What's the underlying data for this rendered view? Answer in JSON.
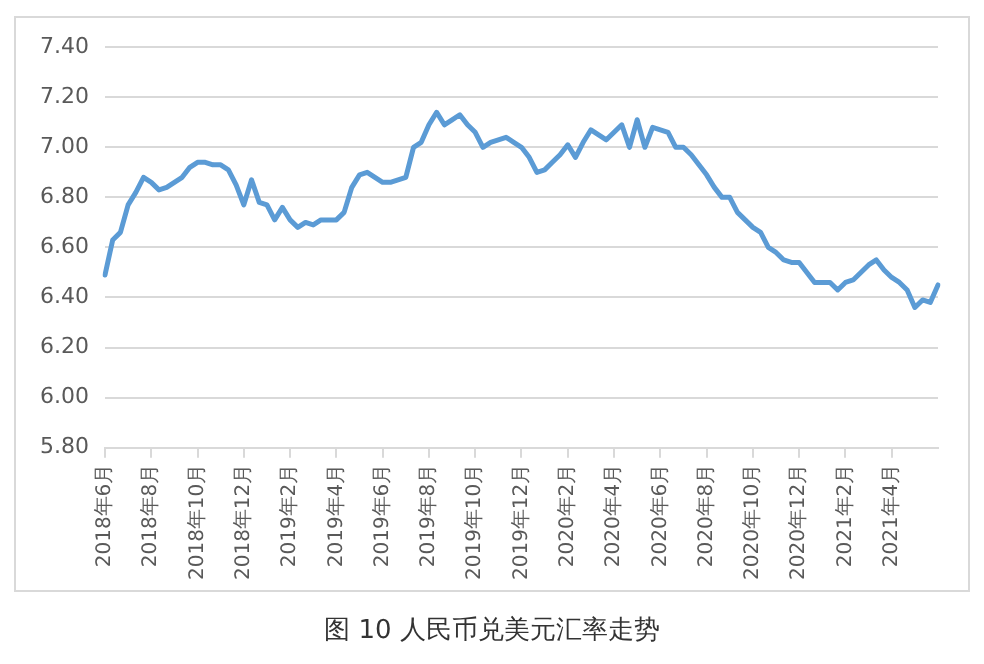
{
  "chart_data": {
    "type": "line",
    "title": "图 10 人民币兑美元汇率走势",
    "categories": [
      "2018年6月",
      null,
      null,
      null,
      null,
      null,
      "2018年8月",
      null,
      null,
      null,
      null,
      null,
      "2018年10月",
      null,
      null,
      null,
      null,
      null,
      "2018年12月",
      null,
      null,
      null,
      null,
      null,
      "2019年2月",
      null,
      null,
      null,
      null,
      null,
      "2019年4月",
      null,
      null,
      null,
      null,
      null,
      "2019年6月",
      null,
      null,
      null,
      null,
      null,
      "2019年8月",
      null,
      null,
      null,
      null,
      null,
      "2019年10月",
      null,
      null,
      null,
      null,
      null,
      "2019年12月",
      null,
      null,
      null,
      null,
      null,
      "2020年2月",
      null,
      null,
      null,
      null,
      null,
      "2020年4月",
      null,
      null,
      null,
      null,
      null,
      "2020年6月",
      null,
      null,
      null,
      null,
      null,
      "2020年8月",
      null,
      null,
      null,
      null,
      null,
      "2020年10月",
      null,
      null,
      null,
      null,
      null,
      "2020年12月",
      null,
      null,
      null,
      null,
      null,
      "2021年2月",
      null,
      null,
      null,
      null,
      null,
      "2021年4月",
      null,
      null,
      null,
      null,
      null,
      null
    ],
    "series": [
      {
        "color": "#5b9bd5",
        "values": [
          6.49,
          6.63,
          6.66,
          6.77,
          6.82,
          6.88,
          6.86,
          6.83,
          6.84,
          6.86,
          6.88,
          6.92,
          6.94,
          6.94,
          6.93,
          6.93,
          6.91,
          6.85,
          6.77,
          6.87,
          6.78,
          6.77,
          6.71,
          6.76,
          6.71,
          6.68,
          6.7,
          6.69,
          6.71,
          6.71,
          6.71,
          6.74,
          6.84,
          6.89,
          6.9,
          6.88,
          6.86,
          6.86,
          6.87,
          6.88,
          7.0,
          7.02,
          7.09,
          7.14,
          7.09,
          7.11,
          7.13,
          7.09,
          7.06,
          7.0,
          7.02,
          7.03,
          7.04,
          7.02,
          7.0,
          6.96,
          6.9,
          6.91,
          6.94,
          6.97,
          7.01,
          6.96,
          7.02,
          7.07,
          7.05,
          7.03,
          7.06,
          7.09,
          7.0,
          7.11,
          7.0,
          7.08,
          7.07,
          7.06,
          7.0,
          7.0,
          6.97,
          6.93,
          6.89,
          6.84,
          6.8,
          6.8,
          6.74,
          6.71,
          6.68,
          6.66,
          6.6,
          6.58,
          6.55,
          6.54,
          6.54,
          6.5,
          6.46,
          6.46,
          6.46,
          6.43,
          6.46,
          6.47,
          6.5,
          6.53,
          6.55,
          6.51,
          6.48,
          6.46,
          6.43,
          6.36,
          6.39,
          6.38,
          6.45
        ]
      }
    ],
    "ylim": [
      5.8,
      7.4
    ],
    "yticks": [
      {
        "value": 5.8,
        "label": "5.80"
      },
      {
        "value": 6,
        "label": "6.00"
      },
      {
        "value": 6.2,
        "label": "6.20"
      },
      {
        "value": 6.4,
        "label": "6.40"
      },
      {
        "value": 6.6,
        "label": "6.60"
      },
      {
        "value": 6.8,
        "label": "6.80"
      },
      {
        "value": 7,
        "label": "7.00"
      },
      {
        "value": 7.2,
        "label": "7.20"
      },
      {
        "value": 7.4,
        "label": "7.40"
      }
    ],
    "grid": "y",
    "legend": false,
    "marker": "none",
    "line_style": "solid"
  }
}
